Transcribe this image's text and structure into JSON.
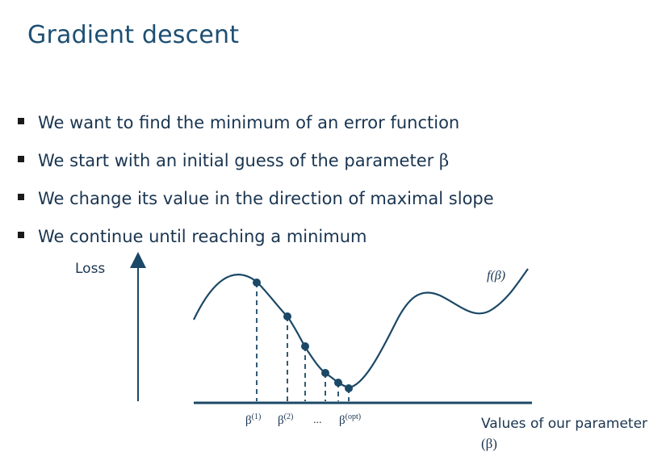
{
  "slide": {
    "title": "Gradient descent",
    "bullets": [
      "We want to find the minimum of an error function",
      "We start with an initial guess of the parameter",
      "We change its value in the direction of maximal slope",
      "We continue until reaching a minimum"
    ],
    "beta_symbol": "β"
  },
  "diagram": {
    "y_label": "Loss",
    "function_label": "f(β)",
    "x_label_line1": "Values of our parameter",
    "x_label_line2": "(β)",
    "beta_ticks": [
      {
        "base": "β",
        "sup": "(1)"
      },
      {
        "base": "β",
        "sup": "(2)"
      },
      {
        "base": "...",
        "sup": ""
      },
      {
        "base": "β",
        "sup": "(opt)"
      }
    ],
    "colors": {
      "curve": "#1b4866",
      "text": "#1a3550",
      "title": "#1d4f73"
    }
  }
}
